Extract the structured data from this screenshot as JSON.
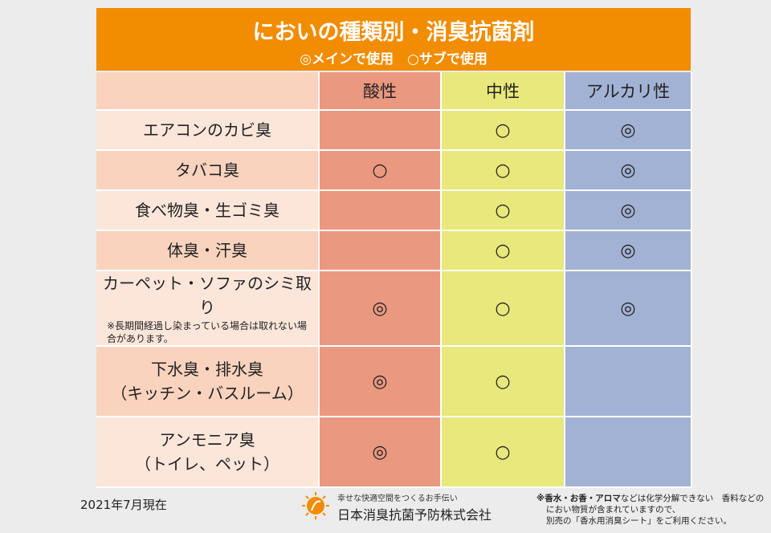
{
  "header": {
    "title": "においの種類別・消臭抗菌剤",
    "subtitle": "◎メインで使用　○サブで使用"
  },
  "table": {
    "column_headers": [
      "酸性",
      "中性",
      "アルカリ性"
    ],
    "rows": [
      {
        "label": [
          "エアコンのカビ臭"
        ],
        "cells": [
          null,
          "○",
          "◎"
        ]
      },
      {
        "label": [
          "タバコ臭"
        ],
        "cells": [
          "○",
          "○",
          "◎"
        ]
      },
      {
        "label": [
          "食べ物臭・生ゴミ臭"
        ],
        "cells": [
          null,
          "○",
          "◎"
        ]
      },
      {
        "label": [
          "体臭・汗臭"
        ],
        "cells": [
          null,
          "○",
          "◎"
        ]
      },
      {
        "label": [
          "カーペット・ソファのシミ取り"
        ],
        "note": "※長期間経過し染まっている場合は取れない場合があります。",
        "cells": [
          "◎",
          "○",
          "◎"
        ]
      },
      {
        "label": [
          "下水臭・排水臭",
          "（キッチン・バスルーム）"
        ],
        "cells": [
          "◎",
          "○",
          null
        ]
      },
      {
        "label": [
          "アンモニア臭",
          "（トイレ、ペット）"
        ],
        "cells": [
          "◎",
          "○",
          null
        ]
      }
    ]
  },
  "footer": {
    "date": "2021年7月現在",
    "tagline": "幸せな快適空間をつくるお手伝い",
    "company": "日本消臭抗菌予防株式会社",
    "note_bold": "※香水・お香・アロマ",
    "note_lines": [
      "などは化学分解できない　香料などの",
      "におい物質が含まれていますので、",
      "別売の「香水用消臭シート」をご利用ください。"
    ]
  }
}
